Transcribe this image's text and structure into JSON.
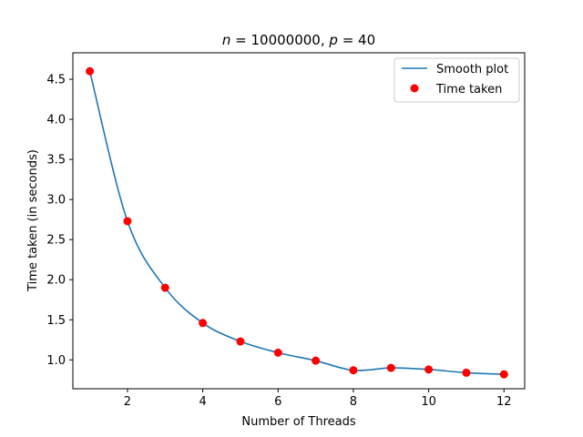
{
  "chart_data": {
    "type": "line",
    "title": {
      "n_symbol": "n",
      "equals": " = ",
      "n_value": "10000000",
      "sep": ", ",
      "p_symbol": "p",
      "p_value": "40"
    },
    "xlabel": "Number of Threads",
    "ylabel": "Time taken (in seconds)",
    "xlim": [
      0.55,
      12.55
    ],
    "ylim": [
      0.64,
      4.83
    ],
    "x_ticks": [
      2,
      4,
      6,
      8,
      10,
      12
    ],
    "y_ticks": [
      1.0,
      1.5,
      2.0,
      2.5,
      3.0,
      3.5,
      4.0,
      4.5
    ],
    "x_tick_labels": [
      "2",
      "4",
      "6",
      "8",
      "10",
      "12"
    ],
    "y_tick_labels": [
      "1.0",
      "1.5",
      "2.0",
      "2.5",
      "3.0",
      "3.5",
      "4.0",
      "4.5"
    ],
    "legend_position": "top-right",
    "grid": false,
    "series": [
      {
        "name": "Smooth plot",
        "kind": "line",
        "color": "#1f77b4",
        "x": [
          1,
          2,
          3,
          4,
          5,
          6,
          7,
          8,
          9,
          10,
          11,
          12
        ],
        "y": [
          4.6,
          2.73,
          1.9,
          1.46,
          1.23,
          1.09,
          0.99,
          0.87,
          0.9,
          0.88,
          0.84,
          0.82
        ]
      },
      {
        "name": "Time taken",
        "kind": "scatter",
        "color": "#ff0000",
        "x": [
          1,
          2,
          3,
          4,
          5,
          6,
          7,
          8,
          9,
          10,
          11,
          12
        ],
        "y": [
          4.6,
          2.73,
          1.9,
          1.46,
          1.23,
          1.09,
          0.99,
          0.87,
          0.9,
          0.88,
          0.84,
          0.82
        ]
      }
    ]
  }
}
